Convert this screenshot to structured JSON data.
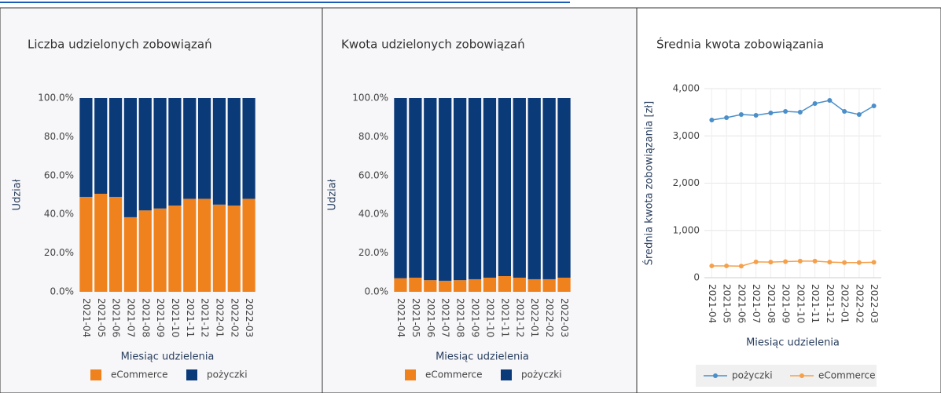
{
  "chart_data": [
    {
      "type": "stacked_bar",
      "title": "Liczba udzielonych zobowiązań",
      "xlabel": "Miesiąc udzielenia",
      "ylabel": "Udział",
      "categories": [
        "2021-04",
        "2021-05",
        "2021-06",
        "2021-07",
        "2021-08",
        "2021-09",
        "2021-10",
        "2021-11",
        "2021-12",
        "2022-01",
        "2022-02",
        "2022-03"
      ],
      "series": [
        {
          "name": "eCommerce",
          "color": "#f0821e",
          "values": [
            49,
            50.6,
            49,
            38.5,
            42,
            43,
            44.5,
            48,
            48,
            45,
            44.5,
            48
          ]
        },
        {
          "name": "pożyczki",
          "color": "#0b3a78",
          "values": [
            51,
            49.4,
            51,
            61.5,
            58,
            57,
            55.5,
            52,
            52,
            55,
            55.5,
            52
          ]
        }
      ],
      "ylim": [
        0,
        100
      ],
      "yticks": [
        {
          "value": 0,
          "label": "0.0%"
        },
        {
          "value": 20,
          "label": "20.0%"
        },
        {
          "value": 40,
          "label": "40.0%"
        },
        {
          "value": 60,
          "label": "60.0%"
        },
        {
          "value": 80,
          "label": "80.0%"
        },
        {
          "value": 100,
          "label": "100.0%"
        }
      ],
      "grid": false,
      "legend": "bottom"
    },
    {
      "type": "stacked_bar",
      "title": "Kwota udzielonych zobowiązań",
      "xlabel": "Miesiąc udzielenia",
      "ylabel": "Udział",
      "categories": [
        "2021-04",
        "2021-05",
        "2021-06",
        "2021-07",
        "2021-08",
        "2021-09",
        "2021-10",
        "2021-11",
        "2021-12",
        "2022-01",
        "2022-02",
        "2022-03"
      ],
      "series": [
        {
          "name": "eCommerce",
          "color": "#f0821e",
          "values": [
            7,
            7.3,
            6,
            5.7,
            6,
            6.5,
            7.3,
            8.1,
            7.3,
            6.5,
            6.5,
            7.3
          ]
        },
        {
          "name": "pożyczki",
          "color": "#0b3a78",
          "values": [
            93,
            92.7,
            94,
            94.3,
            94,
            93.5,
            92.7,
            91.9,
            92.7,
            93.5,
            93.5,
            92.7
          ]
        }
      ],
      "ylim": [
        0,
        100
      ],
      "yticks": [
        {
          "value": 0,
          "label": "0.0%"
        },
        {
          "value": 20,
          "label": "20.0%"
        },
        {
          "value": 40,
          "label": "40.0%"
        },
        {
          "value": 60,
          "label": "60.0%"
        },
        {
          "value": 80,
          "label": "80.0%"
        },
        {
          "value": 100,
          "label": "100.0%"
        }
      ],
      "grid": false,
      "legend": "bottom"
    },
    {
      "type": "line",
      "title": "Średnia kwota zobowiązania",
      "xlabel": "Miesiąc udzielenia",
      "ylabel": "Średnia kwota zobowiązania [zł]",
      "categories": [
        "2021-04",
        "2021-05",
        "2021-06",
        "2021-07",
        "2021-08",
        "2021-09",
        "2021-10",
        "2021-11",
        "2021-12",
        "2022-01",
        "2022-02",
        "2022-03"
      ],
      "series": [
        {
          "name": "pożyczki",
          "color": "#4a8fc9",
          "values": [
            3336,
            3386,
            3452,
            3436,
            3485,
            3519,
            3502,
            3685,
            3751,
            3519,
            3452,
            3635
          ]
        },
        {
          "name": "eCommerce",
          "color": "#f5a04a",
          "values": [
            250,
            250,
            245,
            335,
            330,
            340,
            350,
            350,
            330,
            320,
            320,
            325
          ]
        }
      ],
      "ylim": [
        0,
        4000
      ],
      "yticks": [
        0,
        {
          "value": 1000,
          "label": "1,000"
        },
        {
          "value": 2000,
          "label": "2,000"
        },
        {
          "value": 3000,
          "label": "3,000"
        },
        {
          "value": 4000,
          "label": "4,000"
        }
      ],
      "grid": true,
      "legend": "bottom"
    }
  ]
}
